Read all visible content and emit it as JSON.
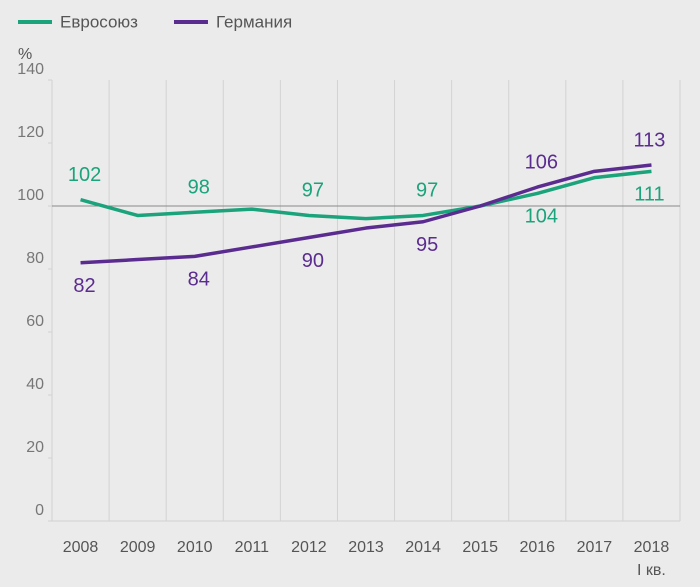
{
  "chart_data": {
    "type": "line",
    "y_label": "%",
    "categories": [
      "2008",
      "2009",
      "2010",
      "2011",
      "2012",
      "2013",
      "2014",
      "2015",
      "2016",
      "2017",
      "2018"
    ],
    "annotations": [
      {
        "text": "I кв."
      }
    ],
    "series": [
      {
        "name": "Евросоюз",
        "color": "#1ba37b",
        "values": [
          102,
          97,
          98,
          99,
          97,
          96,
          97,
          100,
          104,
          109,
          111
        ],
        "value_labels": [
          "102",
          null,
          "98",
          null,
          "97",
          null,
          "97",
          null,
          "104",
          null,
          "111"
        ]
      },
      {
        "name": "Германия",
        "color": "#5b2c8f",
        "values": [
          82,
          83,
          84,
          87,
          90,
          93,
          95,
          100,
          106,
          111,
          113
        ],
        "value_labels": [
          "82",
          null,
          "84",
          null,
          "90",
          null,
          "95",
          null,
          "106",
          null,
          "113"
        ]
      }
    ],
    "ylim": [
      0,
      140
    ],
    "yticks": [
      0,
      20,
      40,
      60,
      80,
      100,
      120,
      140
    ],
    "reference_line": 100,
    "grid": "x"
  }
}
